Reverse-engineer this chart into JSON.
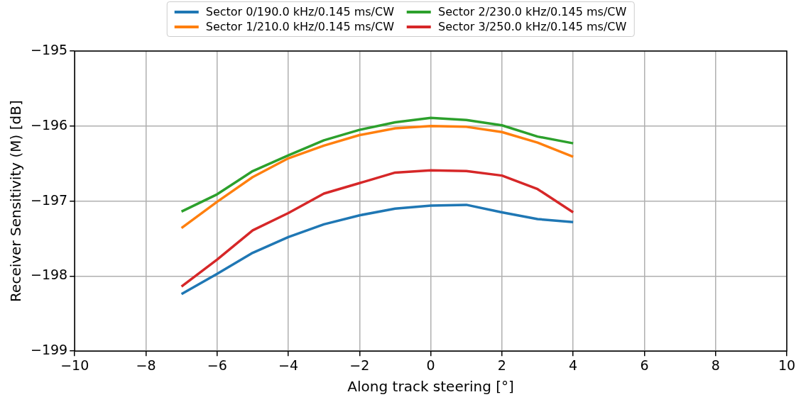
{
  "chart_data": {
    "type": "line",
    "xlabel": "Along track steering [°]",
    "ylabel": "Receiver Sensitivity (M) [dB]",
    "x": [
      -7,
      -6,
      -5,
      -4,
      -3,
      -2,
      -1,
      0,
      1,
      2,
      3,
      4
    ],
    "xlim": [
      -10,
      10
    ],
    "xticks": [
      {
        "value": -10,
        "label": "−10"
      },
      {
        "value": -8,
        "label": "−8"
      },
      {
        "value": -6,
        "label": "−6"
      },
      {
        "value": -4,
        "label": "−4"
      },
      {
        "value": -2,
        "label": "−2"
      },
      0,
      2,
      4,
      6,
      8,
      10
    ],
    "ylim": [
      -199,
      -195
    ],
    "yticks": [
      {
        "value": -199,
        "label": "−199"
      },
      {
        "value": -198,
        "label": "−198"
      },
      {
        "value": -197,
        "label": "−197"
      },
      {
        "value": -196,
        "label": "−196"
      },
      {
        "value": -195,
        "label": "−195"
      }
    ],
    "grid": true,
    "legend": "top",
    "marker": "none",
    "line_style": "solid",
    "series": [
      {
        "name": "Sector 0/190.0 kHz/0.145 ms/CW",
        "color": "#1f77b4",
        "values": [
          -198.24,
          -197.97,
          -197.69,
          -197.48,
          -197.31,
          -197.19,
          -197.1,
          -197.06,
          -197.05,
          -197.15,
          -197.24,
          -197.28
        ]
      },
      {
        "name": "Sector 1/210.0 kHz/0.145 ms/CW",
        "color": "#ff7f0e",
        "values": [
          -197.36,
          -197.01,
          -196.68,
          -196.43,
          -196.26,
          -196.12,
          -196.03,
          -196.0,
          -196.01,
          -196.08,
          -196.22,
          -196.41
        ]
      },
      {
        "name": "Sector 2/230.0 kHz/0.145 ms/CW",
        "color": "#2ca02c",
        "values": [
          -197.14,
          -196.91,
          -196.6,
          -196.39,
          -196.19,
          -196.05,
          -195.95,
          -195.89,
          -195.92,
          -195.99,
          -196.14,
          -196.23
        ]
      },
      {
        "name": "Sector 3/250.0 kHz/0.145 ms/CW",
        "color": "#d62728",
        "values": [
          -198.14,
          -197.78,
          -197.39,
          -197.16,
          -196.9,
          -196.76,
          -196.62,
          -196.59,
          -196.6,
          -196.66,
          -196.84,
          -197.15
        ]
      }
    ]
  }
}
